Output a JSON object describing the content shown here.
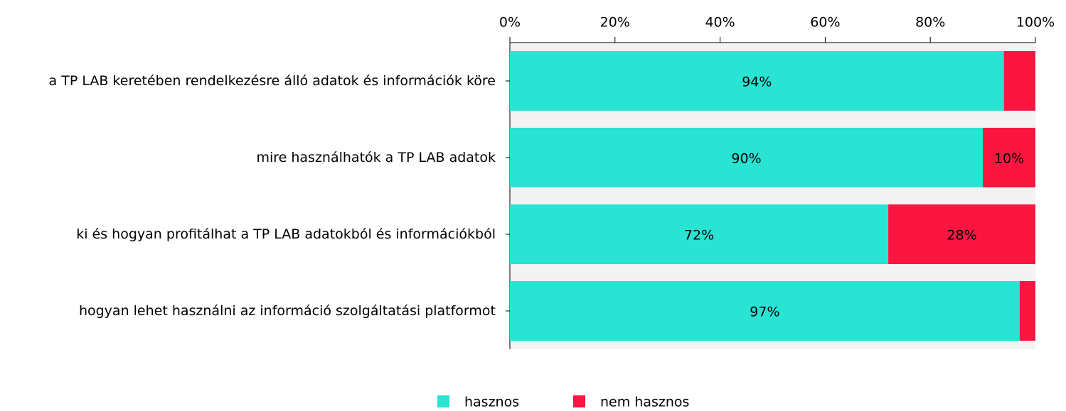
{
  "chart_data": {
    "type": "stacked_bar_horizontal",
    "categories": [
      "a TP LAB keretében rendelkezésre álló adatok és információk köre",
      "mire használhatók a TP LAB adatok",
      "ki és hogyan profitálhat a TP LAB adatokból és információkból",
      "hogyan lehet használni az információ szolgáltatási platformot"
    ],
    "series": [
      {
        "name": "hasznos",
        "color": "#29e3d3",
        "values": [
          94,
          90,
          72,
          97
        ],
        "value_labels": [
          "94%",
          "90%",
          "72%",
          "97%"
        ]
      },
      {
        "name": "nem hasznos",
        "color": "#fb1642",
        "values": [
          6,
          10,
          28,
          3
        ],
        "value_labels": [
          null,
          "10%",
          "28%",
          null
        ]
      }
    ],
    "xlim": [
      0,
      100
    ],
    "xticks": [
      {
        "value": 0,
        "label": "0%"
      },
      {
        "value": 20,
        "label": "20%"
      },
      {
        "value": 40,
        "label": "40%"
      },
      {
        "value": 60,
        "label": "60%"
      },
      {
        "value": 80,
        "label": "80%"
      },
      {
        "value": 100,
        "label": "100%"
      }
    ],
    "legend": "bottom"
  }
}
